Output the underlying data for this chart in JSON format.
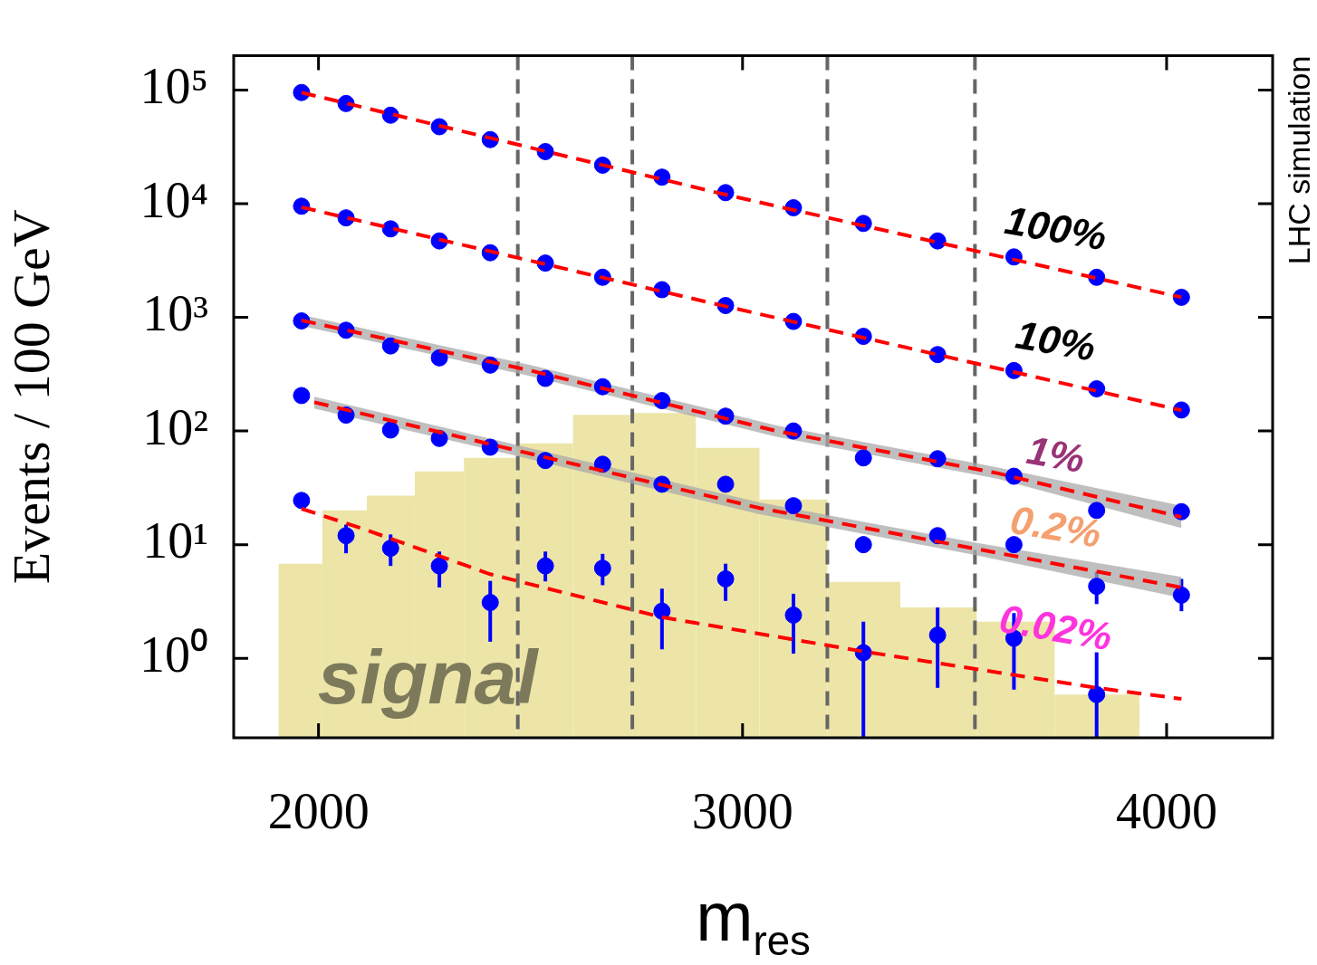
{
  "chart_data": {
    "type": "scatter",
    "xlabel": "m$_{res}$",
    "ylabel": "Events / 100 GeV",
    "annotations": [
      "LHC simulation"
    ],
    "xlim": [
      1800,
      4250
    ],
    "ylim": [
      0.2,
      200000
    ],
    "log": "y",
    "grid": false,
    "legend": false,
    "marker": "circle",
    "xticks": [
      2000,
      3000,
      4000
    ],
    "yticks": [
      {
        "value": 1,
        "label": "10⁰"
      },
      {
        "value": 10,
        "label": "10¹"
      },
      {
        "value": 100,
        "label": "10²"
      },
      {
        "value": 1000,
        "label": "10³"
      },
      {
        "value": 10000,
        "label": "10⁴"
      },
      {
        "value": 100000,
        "label": "10⁵"
      }
    ],
    "ref_lines": [
      {
        "axis": "x",
        "value": 2470,
        "color": "#666666",
        "line_style": "dashed"
      },
      {
        "axis": "x",
        "value": 2740,
        "color": "#666666",
        "line_style": "dashed"
      },
      {
        "axis": "x",
        "value": 3200,
        "color": "#666666",
        "line_style": "dashed"
      },
      {
        "axis": "x",
        "value": 3548,
        "color": "#666666",
        "line_style": "dashed"
      }
    ],
    "x": [
      1960,
      2065,
      2170,
      2285,
      2405,
      2535,
      2670,
      2810,
      2960,
      3120,
      3285,
      3460,
      3640,
      3835,
      4035
    ],
    "series": [
      {
        "type": "histogram",
        "name": "signal",
        "color": "#ede5a8",
        "bins": [
          1906,
          2009,
          2114,
          2227,
          2343,
          2467,
          2600,
          2740,
          2890,
          3040,
          3200,
          3372,
          3552,
          3736,
          3936
        ],
        "values": [
          6.8,
          20,
          27,
          44,
          58,
          78,
          139,
          144,
          71,
          25,
          4.7,
          2.8,
          2.1,
          0.48
        ]
      },
      {
        "name": "100%",
        "color": "#0000ff",
        "values": [
          95000,
          76000,
          60000,
          47500,
          36600,
          28700,
          21800,
          17100,
          12500,
          9200,
          6700,
          4700,
          3400,
          2250,
          1500
        ]
      },
      {
        "name": "10%",
        "color": "#0000ff",
        "values": [
          9500,
          7500,
          6000,
          4700,
          3700,
          3000,
          2250,
          1750,
          1270,
          920,
          680,
          470,
          340,
          235,
          153
        ]
      },
      {
        "name": "1%",
        "color": "#0000ff",
        "values": [
          930,
          770,
          560,
          440,
          380,
          290,
          245,
          185,
          135,
          100,
          58,
          57,
          40,
          20,
          19.5
        ]
      },
      {
        "name": "0.2%",
        "color": "#0000ff",
        "values": [
          205,
          138,
          102,
          86,
          72,
          55,
          51,
          34,
          34,
          22,
          10,
          12,
          10,
          4.3,
          3.6
        ],
        "errors": [
          null,
          null,
          null,
          null,
          null,
          null,
          null,
          null,
          null,
          null,
          [
            8.5,
            11.8
          ],
          [
            10.3,
            14
          ],
          [
            8.5,
            11.8
          ],
          [
            3,
            5.8
          ],
          [
            2.6,
            5
          ]
        ]
      },
      {
        "name": "0.02%",
        "color": "#0000ff",
        "values": [
          24.5,
          12,
          9.3,
          6.5,
          3.1,
          6.5,
          6.2,
          2.6,
          5,
          2.4,
          1.12,
          1.6,
          1.5,
          0.48,
          null
        ],
        "errors": [
          [
            21,
            28
          ],
          [
            8.4,
            15
          ],
          [
            6.5,
            12.3
          ],
          [
            4.2,
            8.7
          ],
          [
            1.4,
            4.8
          ],
          [
            4.75,
            8.7
          ],
          [
            4.4,
            8.3
          ],
          [
            1.2,
            4.1
          ],
          [
            3.2,
            6.8
          ],
          [
            1.1,
            3.7
          ],
          [
            0.2,
            2.1
          ],
          [
            0.55,
            2.8
          ],
          [
            0.53,
            2.5
          ],
          [
            0.2,
            1.13
          ],
          null
        ]
      },
      {
        "type": "line",
        "color": "#ff0000",
        "line_style": "dashed",
        "marker": "none",
        "x": [
          1960,
          2960,
          4035
        ],
        "values": [
          95000,
          12000,
          1500
        ]
      },
      {
        "type": "line",
        "color": "#ff0000",
        "line_style": "dashed",
        "marker": "none",
        "x": [
          1960,
          2960,
          4035
        ],
        "values": [
          9300,
          1250,
          152
        ]
      },
      {
        "type": "line",
        "color": "#ff0000",
        "line_style": "dashed",
        "marker": "none",
        "x": [
          1960,
          2500,
          3080,
          3600,
          4035
        ],
        "values": [
          940,
          340,
          100,
          42.6,
          17.5
        ],
        "lower": [
          840,
          304,
          89,
          38,
          14
        ],
        "upper": [
          1050,
          380,
          112,
          48,
          22
        ]
      },
      {
        "type": "line",
        "color": "#ff0000",
        "line_style": "dashed",
        "marker": "none",
        "x": [
          1990,
          2470,
          3040,
          3550,
          4035
        ],
        "values": [
          179,
          67,
          21,
          9.2,
          4.2
        ],
        "lower": [
          158,
          60,
          18.5,
          8.1,
          3.4
        ],
        "upper": [
          200,
          75,
          23.5,
          10.4,
          5.2
        ]
      },
      {
        "type": "line",
        "color": "#ff0000",
        "line_style": "dashed",
        "marker": "none",
        "x": [
          1960,
          2100,
          2405,
          2810,
          3285,
          3835,
          4035
        ],
        "values": [
          20.7,
          14,
          5.5,
          2.3,
          1.15,
          0.55,
          0.44
        ]
      }
    ]
  }
}
